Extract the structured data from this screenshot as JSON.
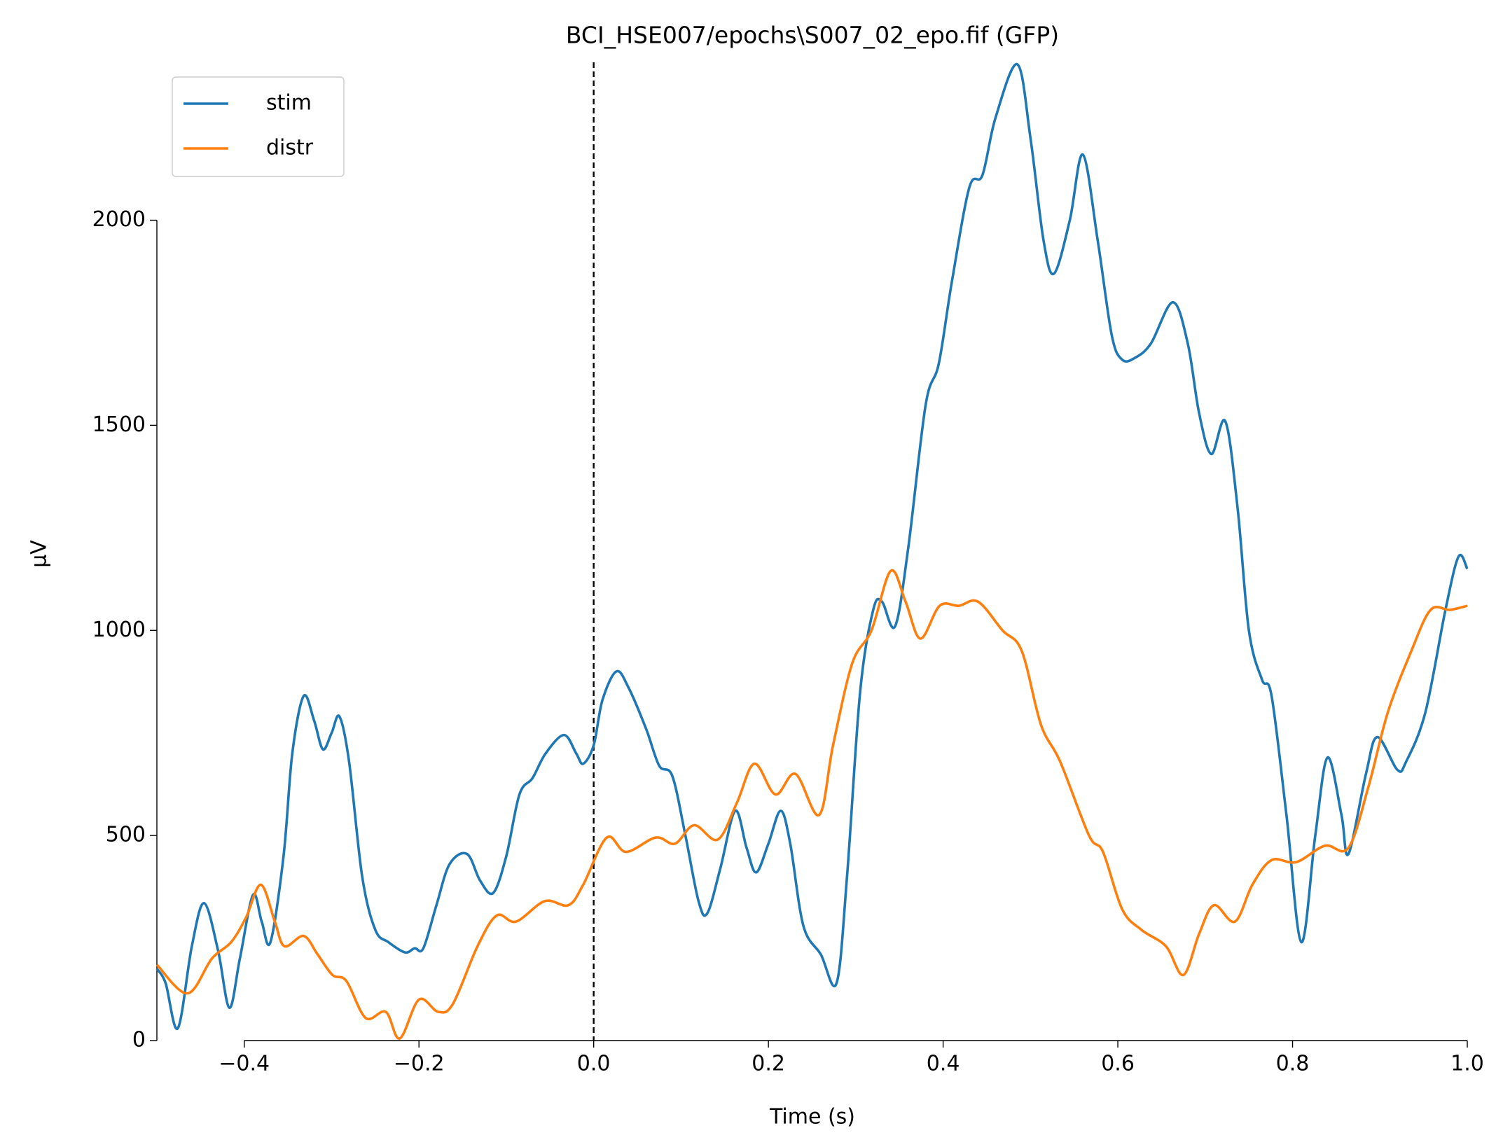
{
  "chart_data": {
    "type": "line",
    "title": "BCI_HSE007/epochs\\S007_02_epo.fif (GFP)",
    "x_label": "Time (s)",
    "y_label": "µV",
    "xlim": [
      -0.5,
      1.0
    ],
    "ylim": [
      0,
      2385
    ],
    "xticks": [
      {
        "value": -0.4,
        "label": "−0.4"
      },
      {
        "value": -0.2,
        "label": "−0.2"
      },
      {
        "value": 0,
        "label": "0.0"
      },
      {
        "value": 0.2,
        "label": "0.2"
      },
      {
        "value": 0.4,
        "label": "0.4"
      },
      {
        "value": 0.6,
        "label": "0.6"
      },
      {
        "value": 0.8,
        "label": "0.8"
      },
      {
        "value": 1,
        "label": "1.0"
      }
    ],
    "yticks": [
      0,
      500,
      1000,
      1500,
      2000
    ],
    "vline": 0,
    "legend": "upper left",
    "series": [
      {
        "name": "stim",
        "color": "#1f77b4",
        "x": [
          -0.5,
          -0.49,
          -0.476,
          -0.46,
          -0.446,
          -0.43,
          -0.417,
          -0.405,
          -0.39,
          -0.38,
          -0.37,
          -0.355,
          -0.345,
          -0.332,
          -0.32,
          -0.31,
          -0.3,
          -0.291,
          -0.28,
          -0.265,
          -0.25,
          -0.235,
          -0.216,
          -0.205,
          -0.195,
          -0.18,
          -0.165,
          -0.145,
          -0.13,
          -0.115,
          -0.1,
          -0.085,
          -0.07,
          -0.055,
          -0.034,
          -0.02,
          -0.012,
          0,
          0.01,
          0.026,
          0.04,
          0.06,
          0.075,
          0.09,
          0.105,
          0.12,
          0.13,
          0.145,
          0.162,
          0.175,
          0.186,
          0.2,
          0.214,
          0.225,
          0.24,
          0.26,
          0.278,
          0.29,
          0.305,
          0.32,
          0.33,
          0.345,
          0.36,
          0.38,
          0.395,
          0.41,
          0.43,
          0.445,
          0.46,
          0.485,
          0.5,
          0.515,
          0.527,
          0.545,
          0.56,
          0.577,
          0.593,
          0.605,
          0.62,
          0.638,
          0.663,
          0.68,
          0.693,
          0.707,
          0.723,
          0.737,
          0.75,
          0.765,
          0.776,
          0.793,
          0.81,
          0.826,
          0.84,
          0.856,
          0.864,
          0.884,
          0.897,
          0.92,
          0.93,
          0.952,
          0.975,
          0.99,
          1.0
        ],
        "values": [
          175,
          140,
          30,
          230,
          335,
          220,
          80,
          200,
          355,
          290,
          240,
          450,
          700,
          840,
          780,
          710,
          750,
          790,
          680,
          400,
          270,
          240,
          215,
          225,
          225,
          330,
          430,
          455,
          390,
          360,
          450,
          600,
          640,
          700,
          745,
          700,
          675,
          720,
          830,
          900,
          860,
          760,
          670,
          645,
          500,
          340,
          310,
          420,
          560,
          470,
          410,
          480,
          560,
          480,
          280,
          210,
          140,
          400,
          850,
          1050,
          1070,
          1010,
          1200,
          1550,
          1650,
          1850,
          2080,
          2110,
          2250,
          2380,
          2200,
          1950,
          1870,
          2000,
          2160,
          1950,
          1720,
          1660,
          1665,
          1700,
          1800,
          1700,
          1530,
          1430,
          1510,
          1300,
          1000,
          880,
          840,
          550,
          240,
          500,
          690,
          550,
          455,
          650,
          740,
          660,
          680,
          800,
          1050,
          1180,
          1150
        ]
      },
      {
        "name": "distr",
        "color": "#ff7f0e",
        "x": [
          -0.5,
          -0.465,
          -0.437,
          -0.415,
          -0.398,
          -0.381,
          -0.365,
          -0.354,
          -0.332,
          -0.316,
          -0.299,
          -0.283,
          -0.261,
          -0.238,
          -0.222,
          -0.2,
          -0.178,
          -0.161,
          -0.133,
          -0.111,
          -0.089,
          -0.056,
          -0.029,
          -0.012,
          0.015,
          0.037,
          0.071,
          0.093,
          0.115,
          0.142,
          0.164,
          0.184,
          0.208,
          0.231,
          0.258,
          0.274,
          0.296,
          0.318,
          0.34,
          0.357,
          0.374,
          0.396,
          0.418,
          0.44,
          0.468,
          0.49,
          0.512,
          0.534,
          0.567,
          0.583,
          0.605,
          0.627,
          0.655,
          0.675,
          0.693,
          0.71,
          0.734,
          0.754,
          0.776,
          0.804,
          0.837,
          0.864,
          0.887,
          0.909,
          0.936,
          0.958,
          0.98,
          1.0
        ],
        "values": [
          185,
          115,
          200,
          240,
          300,
          380,
          290,
          230,
          255,
          210,
          160,
          145,
          55,
          70,
          5,
          100,
          70,
          90,
          230,
          305,
          290,
          340,
          330,
          380,
          495,
          460,
          495,
          480,
          525,
          490,
          580,
          675,
          600,
          650,
          550,
          720,
          920,
          1000,
          1145,
          1070,
          980,
          1060,
          1060,
          1070,
          1000,
          950,
          770,
          680,
          500,
          460,
          320,
          270,
          230,
          160,
          260,
          330,
          290,
          380,
          440,
          435,
          475,
          470,
          620,
          800,
          950,
          1050,
          1050,
          1060
        ]
      }
    ]
  }
}
